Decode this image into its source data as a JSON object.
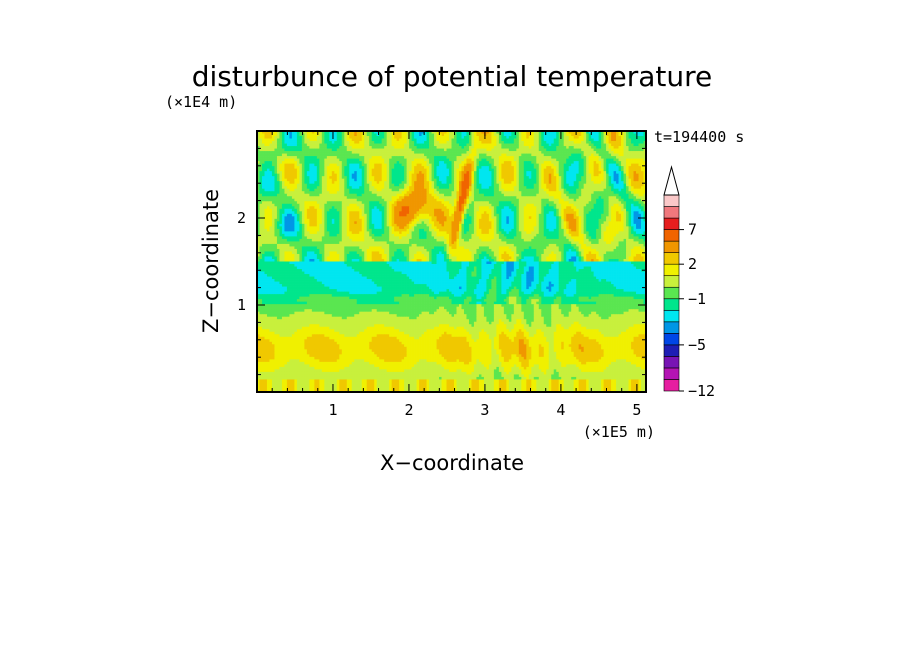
{
  "chart_data": {
    "type": "heatmap",
    "title": "disturbunce of potential temperature",
    "xlabel": "X−coordinate",
    "ylabel": "Z−coordinate",
    "x_unit": "(×1E5 m)",
    "y_unit": "(×1E4 m)",
    "time_label": "t=194400 s",
    "xlim": [
      0,
      5.12
    ],
    "ylim": [
      0,
      3.0
    ],
    "x_ticks": [
      {
        "value": 1,
        "label": "1"
      },
      {
        "value": 2,
        "label": "2"
      },
      {
        "value": 3,
        "label": "3"
      },
      {
        "value": 4,
        "label": "4"
      },
      {
        "value": 5,
        "label": "5"
      }
    ],
    "y_ticks": [
      {
        "value": 1,
        "label": "1"
      },
      {
        "value": 2,
        "label": "2"
      }
    ],
    "colorbar": {
      "levels": [
        -12,
        -10,
        -8,
        -6,
        -5,
        -4,
        -3,
        -2,
        -1,
        0,
        1,
        2,
        3,
        5,
        7,
        8,
        9,
        10
      ],
      "colors": [
        "#e61ea0",
        "#b414b4",
        "#7814b4",
        "#1e1eb4",
        "#0046e6",
        "#0096e6",
        "#00e6f0",
        "#00e68c",
        "#5ae650",
        "#c8f03c",
        "#f0f000",
        "#f0c800",
        "#f09600",
        "#f06400",
        "#e61e1e",
        "#f0787d",
        "#fac8c8"
      ],
      "extend_max": true,
      "tick_labels": [
        {
          "value": 7,
          "label": "7"
        },
        {
          "value": 2,
          "label": "2"
        },
        {
          "value": -1,
          "label": "−1"
        },
        {
          "value": -5,
          "label": "−5"
        },
        {
          "value": -12,
          "label": "−12"
        }
      ]
    }
  }
}
